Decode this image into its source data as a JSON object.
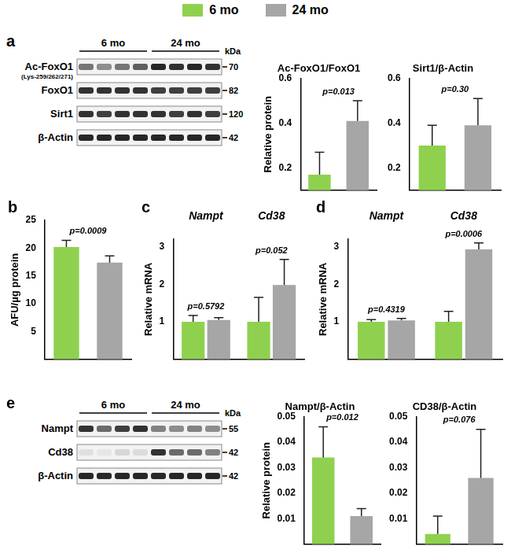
{
  "legend": [
    {
      "name": "6 mo",
      "color": "#8fd14f"
    },
    {
      "name": "24 mo",
      "color": "#a6a6a6"
    }
  ],
  "blots": [
    {
      "panel": "a",
      "groups": [
        "6 mo",
        "24 mo"
      ],
      "unit": "kDa",
      "rows": [
        {
          "label": "Ac-FoxO1",
          "sublabel": "(Lys-259/262/271)",
          "kda": 70
        },
        {
          "label": "FoxO1",
          "kda": 82
        },
        {
          "label": "Sirt1",
          "kda": 120
        },
        {
          "label": "β-Actin",
          "kda": 42
        }
      ]
    },
    {
      "panel": "e",
      "groups": [
        "6 mo",
        "24 mo"
      ],
      "unit": "kDa",
      "rows": [
        {
          "label": "Nampt",
          "kda": 55
        },
        {
          "label": "Cd38",
          "kda": 42
        },
        {
          "label": "β-Actin",
          "kda": 42
        }
      ]
    }
  ],
  "chart_data": [
    {
      "type": "bar",
      "title": "Ac-FoxO1/FoxO1",
      "ylabel": "Relative protein",
      "categories": [
        null,
        null
      ],
      "values": [
        0.17,
        0.41
      ],
      "errors": [
        0.1,
        0.09
      ],
      "colors": [
        "#8fd14f",
        "#a6a6a6"
      ],
      "ylim": [
        0.1,
        0.6
      ],
      "yticks": [
        0.2,
        0.4,
        0.6
      ],
      "annotations": [
        "p=0.013"
      ],
      "tick_labels": "y",
      "grid": false
    },
    {
      "type": "bar",
      "title": "Sirt1/β-Actin",
      "categories": [
        null,
        null
      ],
      "values": [
        0.3,
        0.39
      ],
      "errors": [
        0.09,
        0.12
      ],
      "colors": [
        "#8fd14f",
        "#a6a6a6"
      ],
      "ylim": [
        0.1,
        0.6
      ],
      "yticks": [
        0.2,
        0.4,
        0.6
      ],
      "annotations": [
        "p=0.30"
      ],
      "tick_labels": "y",
      "grid": false
    },
    {
      "type": "bar",
      "panel": "b",
      "ylabel": "AFU/µg protein",
      "categories": [
        null,
        null
      ],
      "values": [
        20.2,
        17.4
      ],
      "errors": [
        1.2,
        1.2
      ],
      "colors": [
        "#8fd14f",
        "#a6a6a6"
      ],
      "ylim": [
        0,
        25
      ],
      "yticks": [
        5,
        10,
        15,
        20,
        25
      ],
      "annotations": [
        "p=0.0009"
      ],
      "tick_labels": "y",
      "grid": false
    },
    {
      "type": "bar",
      "panel": "c",
      "ylabel": "Relative mRNA",
      "categories": [
        "Nampt",
        "Cd38"
      ],
      "series": [
        {
          "color": "#8fd14f",
          "values": [
            1.0,
            1.0
          ],
          "errors": [
            0.17,
            0.65
          ]
        },
        {
          "color": "#a6a6a6",
          "values": [
            1.05,
            1.98
          ],
          "errors": [
            0.06,
            0.68
          ]
        }
      ],
      "ylim": [
        0,
        3.2
      ],
      "yticks": [
        1,
        2,
        3
      ],
      "annotations": [
        "p=0.5792",
        "p=0.052"
      ],
      "grid": false
    },
    {
      "type": "bar",
      "panel": "d",
      "ylabel": "Relative mRNA",
      "categories": [
        "Nampt",
        "Cd38"
      ],
      "series": [
        {
          "color": "#8fd14f",
          "values": [
            1.0,
            1.0
          ],
          "errors": [
            0.06,
            0.28
          ]
        },
        {
          "color": "#a6a6a6",
          "values": [
            1.04,
            2.93
          ],
          "errors": [
            0.05,
            0.17
          ]
        }
      ],
      "ylim": [
        0,
        3.2
      ],
      "yticks": [
        1,
        2,
        3
      ],
      "annotations": [
        "p=0.4319",
        "p=0.0006"
      ],
      "grid": false
    },
    {
      "type": "bar",
      "title": "Nampt/β-Actin",
      "ylabel": "Relative protein",
      "categories": [
        null,
        null
      ],
      "values": [
        0.034,
        0.011
      ],
      "errors": [
        0.012,
        0.003
      ],
      "colors": [
        "#8fd14f",
        "#a6a6a6"
      ],
      "ylim": [
        0,
        0.05
      ],
      "yticks": [
        0.01,
        0.02,
        0.03,
        0.04,
        0.05
      ],
      "annotations": [
        "p=0.012"
      ],
      "tick_labels": "y",
      "grid": false
    },
    {
      "type": "bar",
      "title": "CD38/β-Actin",
      "categories": [
        null,
        null
      ],
      "values": [
        0.004,
        0.026
      ],
      "errors": [
        0.007,
        0.019
      ],
      "colors": [
        "#8fd14f",
        "#a6a6a6"
      ],
      "ylim": [
        0,
        0.05
      ],
      "yticks": [
        0.01,
        0.02,
        0.03,
        0.04,
        0.05
      ],
      "annotations": [
        "p=0.076"
      ],
      "tick_labels": "y",
      "grid": false
    }
  ]
}
